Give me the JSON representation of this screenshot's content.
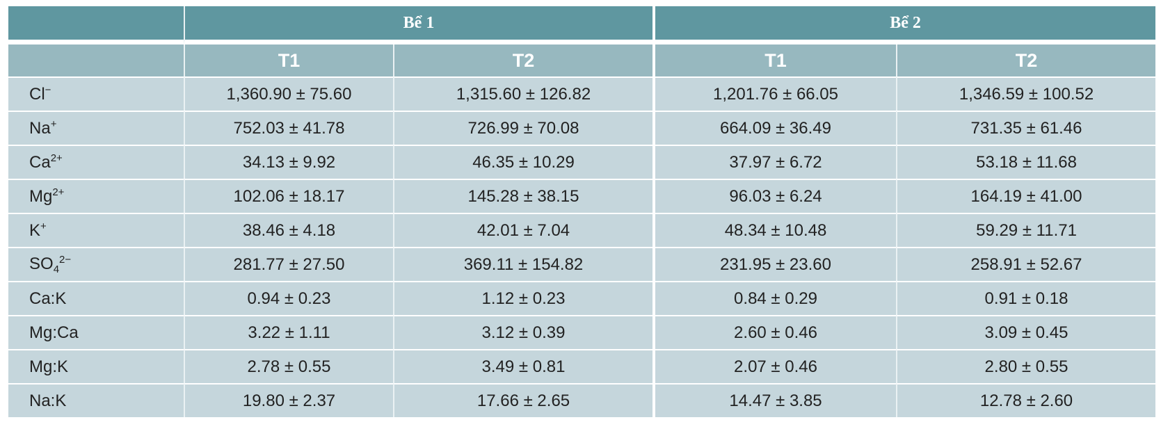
{
  "header": {
    "groups": [
      "Bể 1",
      "Bể 2"
    ],
    "subcolumns": [
      "T1",
      "T2",
      "T1",
      "T2"
    ]
  },
  "colors": {
    "header": "#5f97a0",
    "subheader": "#97b8bf",
    "row": "#c5d6dc"
  },
  "rows": [
    {
      "base": "Cl",
      "sub": "",
      "sup": "−",
      "values": [
        "1,360.90 ± 75.60",
        "1,315.60 ± 126.82",
        "1,201.76 ± 66.05",
        "1,346.59 ± 100.52"
      ]
    },
    {
      "base": "Na",
      "sub": "",
      "sup": "+",
      "values": [
        "752.03 ± 41.78",
        "726.99 ± 70.08",
        "664.09 ± 36.49",
        "731.35 ± 61.46"
      ]
    },
    {
      "base": "Ca",
      "sub": "",
      "sup": "2+",
      "values": [
        "34.13 ± 9.92",
        "46.35 ± 10.29",
        "37.97 ± 6.72",
        "53.18 ± 11.68"
      ]
    },
    {
      "base": "Mg",
      "sub": "",
      "sup": "2+",
      "values": [
        "102.06 ± 18.17",
        "145.28 ± 38.15",
        "96.03 ± 6.24",
        "164.19 ± 41.00"
      ]
    },
    {
      "base": "K",
      "sub": "",
      "sup": "+",
      "values": [
        "38.46 ± 4.18",
        "42.01 ± 7.04",
        "48.34 ± 10.48",
        "59.29 ± 11.71"
      ]
    },
    {
      "base": "SO",
      "sub": "4",
      "sup": "2−",
      "values": [
        "281.77 ± 27.50",
        "369.11 ± 154.82",
        "231.95 ± 23.60",
        "258.91 ± 52.67"
      ]
    },
    {
      "base": "Ca:K",
      "sub": "",
      "sup": "",
      "values": [
        "0.94 ± 0.23",
        "1.12 ± 0.23",
        "0.84 ± 0.29",
        "0.91 ± 0.18"
      ]
    },
    {
      "base": "Mg:Ca",
      "sub": "",
      "sup": "",
      "values": [
        "3.22 ± 1.11",
        "3.12 ± 0.39",
        "2.60 ± 0.46",
        "3.09 ± 0.45"
      ]
    },
    {
      "base": "Mg:K",
      "sub": "",
      "sup": "",
      "values": [
        "2.78 ± 0.55",
        "3.49 ± 0.81",
        "2.07 ± 0.46",
        "2.80 ± 0.55"
      ]
    },
    {
      "base": "Na:K",
      "sub": "",
      "sup": "",
      "values": [
        "19.80 ± 2.37",
        "17.66 ± 2.65",
        "14.47 ± 3.85",
        "12.78 ± 2.60"
      ]
    }
  ]
}
